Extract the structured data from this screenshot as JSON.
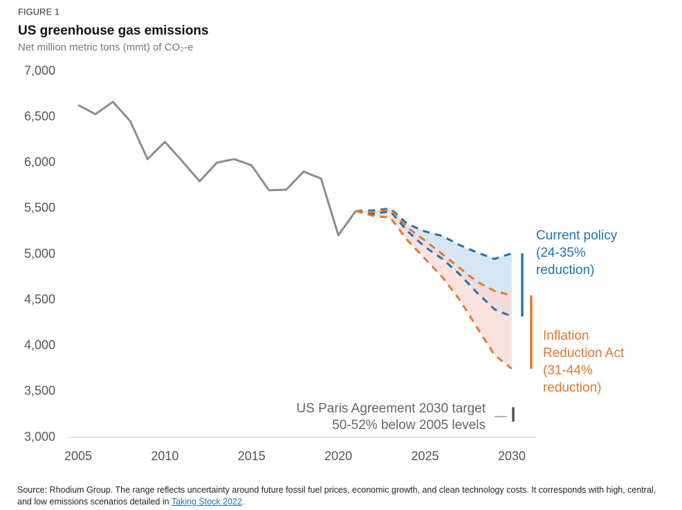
{
  "chart_data": {
    "type": "line",
    "figure_label": "FIGURE 1",
    "title": "US greenhouse gas emissions",
    "subtitle": "Net million metric tons (mmt) of CO₂-e",
    "x": [
      2005,
      2006,
      2007,
      2008,
      2009,
      2010,
      2011,
      2012,
      2013,
      2014,
      2015,
      2016,
      2017,
      2018,
      2019,
      2020,
      2021
    ],
    "values": [
      6630,
      6531,
      6667,
      6456,
      6040,
      6229,
      6017,
      5798,
      6002,
      6040,
      5972,
      5699,
      5707,
      5904,
      5828,
      5208,
      5473
    ],
    "color": "#8c8c8c",
    "projection_x": [
      2021,
      2022,
      2023,
      2024,
      2025,
      2026,
      2027,
      2028,
      2029,
      2030
    ],
    "scenarios": [
      {
        "label_lines": [
          "Current policy",
          "(24-35%",
          "reduction)"
        ],
        "color": "#1f73ad",
        "fill": "#c9def0",
        "high": [
          5473,
          5480,
          5500,
          5330,
          5250,
          5200,
          5100,
          5020,
          4950,
          5010
        ],
        "low": [
          5473,
          5440,
          5470,
          5250,
          5080,
          4950,
          4780,
          4580,
          4400,
          4320
        ]
      },
      {
        "label_lines": [
          "Inflation",
          "Reduction Act",
          "(31-44%",
          "reduction)"
        ],
        "color": "#e0782f",
        "fill": "#f8d9d3",
        "high": [
          5473,
          5460,
          5490,
          5290,
          5150,
          5000,
          4850,
          4700,
          4600,
          4550
        ],
        "low": [
          5473,
          5420,
          5400,
          5150,
          4950,
          4750,
          4500,
          4200,
          3900,
          3750
        ]
      }
    ],
    "target": {
      "label_lines": [
        "US Paris Agreement 2030 target",
        "50-52% below 2005 levels"
      ],
      "range": [
        3170,
        3330
      ],
      "color": "#555555"
    },
    "xlim": [
      2004.4,
      2031.4
    ],
    "ylim": [
      3000,
      7000
    ],
    "xticks": [
      2005,
      2010,
      2015,
      2020,
      2025,
      2030
    ],
    "yticks": [
      {
        "value": 3000,
        "label": "3,000"
      },
      {
        "value": 3500,
        "label": "3,500"
      },
      {
        "value": 4000,
        "label": "4,000"
      },
      {
        "value": 4500,
        "label": "4,500"
      },
      {
        "value": 5000,
        "label": "5,000"
      },
      {
        "value": 5500,
        "label": "5,500"
      },
      {
        "value": 6000,
        "label": "6,000"
      },
      {
        "value": 6500,
        "label": "6,500"
      },
      {
        "value": 7000,
        "label": "7,000"
      }
    ],
    "grid": false,
    "source_text": "Source: Rhodium Group. The range reflects uncertainty around future fossil fuel prices, economic growth, and clean technology costs. It corresponds with high, central, and low emissions scenarios detailed in",
    "source_link": "Taking Stock 2022",
    "source_end": "."
  }
}
